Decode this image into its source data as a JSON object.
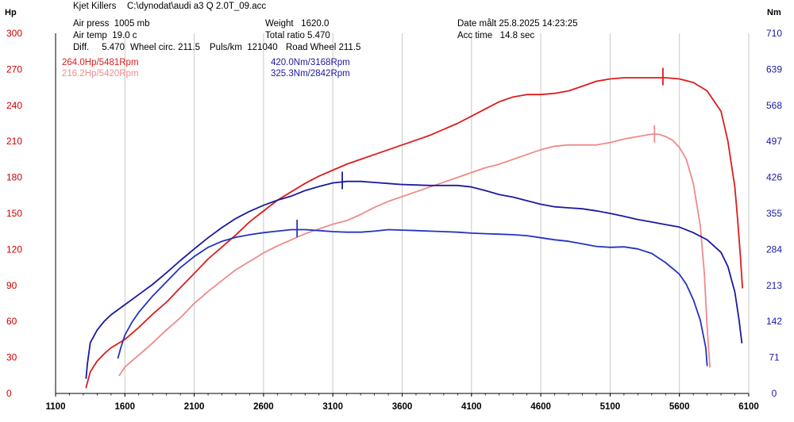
{
  "header": {
    "title": "Kjet Killers",
    "file": "C:\\dynodat\\audi a3 Q 2.0T_09.acc",
    "air_press": "Air press  1005 mb",
    "air_temp": "Air temp  19.0 c",
    "diff": "Diff.     5.470",
    "wheel_circ": "Wheel circ. 211.5",
    "puls_km": "Puls/km  121040",
    "road_wheel": "Road Wheel 211.5",
    "weight": "Weight   1620.0",
    "total_ratio": "Total ratio 5.470",
    "date": "Date målt 25.8.2025 14:23:25",
    "acc_time": "Acc time   14.8 sec"
  },
  "peaks": {
    "hp1": "264.0Hp/5481Rpm",
    "hp2": "216.2Hp/5420Rpm",
    "nm1": "420.0Nm/3168Rpm",
    "nm2": "325.3Nm/2842Rpm"
  },
  "colors": {
    "hp1": "#dd1c1c",
    "hp2": "#ef8a8a",
    "nm1": "#1a1aa0",
    "nm2": "#2433bf",
    "left_axis": "#cc0000",
    "right_axis": "#1a1aa0",
    "grid": "#c8c8c8"
  },
  "chart_data": {
    "type": "line",
    "xlabel": "",
    "ylabel_left": "Hp",
    "ylabel_right": "Nm",
    "xlim": [
      1100,
      6100
    ],
    "ylim_left": [
      0,
      300
    ],
    "ylim_right": [
      0,
      710
    ],
    "x_ticks": [
      1100,
      1600,
      2100,
      2600,
      3100,
      3600,
      4100,
      4600,
      5100,
      5600,
      6100
    ],
    "y_ticks_left": [
      0,
      30,
      60,
      90,
      120,
      150,
      180,
      210,
      240,
      270,
      300
    ],
    "y_ticks_right": [
      0,
      71,
      142,
      213,
      284,
      355,
      426,
      497,
      568,
      639,
      710
    ],
    "grid": "vertical",
    "series": [
      {
        "key": "hp1",
        "axis": "left",
        "color": "#dd1c1c",
        "peak_rpm": 5481,
        "peak_value": 264.0,
        "points": [
          [
            1320,
            5
          ],
          [
            1350,
            18
          ],
          [
            1400,
            27
          ],
          [
            1450,
            33
          ],
          [
            1500,
            38
          ],
          [
            1600,
            45
          ],
          [
            1700,
            55
          ],
          [
            1800,
            66
          ],
          [
            1900,
            76
          ],
          [
            2000,
            88
          ],
          [
            2100,
            100
          ],
          [
            2200,
            112
          ],
          [
            2300,
            122
          ],
          [
            2400,
            132
          ],
          [
            2500,
            143
          ],
          [
            2600,
            152
          ],
          [
            2700,
            161
          ],
          [
            2800,
            168
          ],
          [
            2900,
            175
          ],
          [
            3000,
            181
          ],
          [
            3100,
            186
          ],
          [
            3200,
            191
          ],
          [
            3300,
            195
          ],
          [
            3400,
            199
          ],
          [
            3500,
            203
          ],
          [
            3600,
            207
          ],
          [
            3700,
            211
          ],
          [
            3800,
            215
          ],
          [
            3900,
            220
          ],
          [
            4000,
            225
          ],
          [
            4100,
            231
          ],
          [
            4200,
            237
          ],
          [
            4300,
            243
          ],
          [
            4400,
            247
          ],
          [
            4500,
            249
          ],
          [
            4600,
            249
          ],
          [
            4700,
            250
          ],
          [
            4800,
            252
          ],
          [
            4900,
            256
          ],
          [
            5000,
            260
          ],
          [
            5100,
            262
          ],
          [
            5200,
            263
          ],
          [
            5300,
            263
          ],
          [
            5400,
            263
          ],
          [
            5500,
            263
          ],
          [
            5600,
            262
          ],
          [
            5700,
            259
          ],
          [
            5800,
            252
          ],
          [
            5900,
            235
          ],
          [
            5950,
            210
          ],
          [
            6000,
            172
          ],
          [
            6020,
            145
          ],
          [
            6040,
            114
          ],
          [
            6055,
            88
          ]
        ]
      },
      {
        "key": "hp2",
        "axis": "left",
        "color": "#ef8a8a",
        "peak_rpm": 5420,
        "peak_value": 216.2,
        "points": [
          [
            1560,
            15
          ],
          [
            1600,
            22
          ],
          [
            1700,
            32
          ],
          [
            1800,
            42
          ],
          [
            1900,
            53
          ],
          [
            2000,
            63
          ],
          [
            2100,
            75
          ],
          [
            2200,
            85
          ],
          [
            2300,
            94
          ],
          [
            2400,
            103
          ],
          [
            2500,
            110
          ],
          [
            2600,
            117
          ],
          [
            2700,
            123
          ],
          [
            2800,
            128
          ],
          [
            2900,
            133
          ],
          [
            3000,
            137
          ],
          [
            3100,
            141
          ],
          [
            3200,
            144
          ],
          [
            3300,
            149
          ],
          [
            3400,
            155
          ],
          [
            3500,
            160
          ],
          [
            3600,
            164
          ],
          [
            3700,
            168
          ],
          [
            3800,
            172
          ],
          [
            3900,
            176
          ],
          [
            4000,
            180
          ],
          [
            4100,
            184
          ],
          [
            4200,
            188
          ],
          [
            4300,
            191
          ],
          [
            4400,
            195
          ],
          [
            4500,
            199
          ],
          [
            4600,
            203
          ],
          [
            4700,
            206
          ],
          [
            4800,
            207
          ],
          [
            4900,
            207
          ],
          [
            5000,
            207
          ],
          [
            5100,
            209
          ],
          [
            5200,
            212
          ],
          [
            5300,
            214
          ],
          [
            5400,
            216
          ],
          [
            5450,
            216
          ],
          [
            5500,
            214
          ],
          [
            5550,
            211
          ],
          [
            5600,
            205
          ],
          [
            5650,
            195
          ],
          [
            5700,
            175
          ],
          [
            5750,
            140
          ],
          [
            5780,
            100
          ],
          [
            5800,
            55
          ],
          [
            5820,
            22
          ]
        ]
      },
      {
        "key": "nm1",
        "axis": "right",
        "color": "#1a1aa0",
        "peak_rpm": 3168,
        "peak_value": 420.0,
        "points": [
          [
            1320,
            30
          ],
          [
            1330,
            60
          ],
          [
            1350,
            100
          ],
          [
            1400,
            125
          ],
          [
            1450,
            142
          ],
          [
            1500,
            155
          ],
          [
            1600,
            175
          ],
          [
            1700,
            195
          ],
          [
            1800,
            215
          ],
          [
            1900,
            238
          ],
          [
            2000,
            262
          ],
          [
            2100,
            285
          ],
          [
            2200,
            307
          ],
          [
            2300,
            327
          ],
          [
            2400,
            345
          ],
          [
            2500,
            359
          ],
          [
            2600,
            371
          ],
          [
            2700,
            381
          ],
          [
            2800,
            389
          ],
          [
            2900,
            400
          ],
          [
            3000,
            408
          ],
          [
            3100,
            415
          ],
          [
            3200,
            418
          ],
          [
            3300,
            418
          ],
          [
            3400,
            416
          ],
          [
            3500,
            414
          ],
          [
            3600,
            412
          ],
          [
            3700,
            411
          ],
          [
            3800,
            410
          ],
          [
            3900,
            410
          ],
          [
            4000,
            410
          ],
          [
            4100,
            407
          ],
          [
            4200,
            400
          ],
          [
            4300,
            392
          ],
          [
            4400,
            387
          ],
          [
            4500,
            380
          ],
          [
            4600,
            373
          ],
          [
            4700,
            368
          ],
          [
            4800,
            366
          ],
          [
            4900,
            364
          ],
          [
            5000,
            360
          ],
          [
            5100,
            355
          ],
          [
            5200,
            349
          ],
          [
            5300,
            343
          ],
          [
            5400,
            338
          ],
          [
            5500,
            333
          ],
          [
            5600,
            328
          ],
          [
            5700,
            317
          ],
          [
            5800,
            303
          ],
          [
            5900,
            278
          ],
          [
            5950,
            250
          ],
          [
            6000,
            200
          ],
          [
            6030,
            145
          ],
          [
            6050,
            100
          ]
        ]
      },
      {
        "key": "nm2",
        "axis": "right",
        "color": "#2433bf",
        "peak_rpm": 2842,
        "peak_value": 325.3,
        "points": [
          [
            1550,
            70
          ],
          [
            1570,
            90
          ],
          [
            1600,
            115
          ],
          [
            1650,
            140
          ],
          [
            1700,
            160
          ],
          [
            1800,
            192
          ],
          [
            1900,
            220
          ],
          [
            2000,
            248
          ],
          [
            2100,
            270
          ],
          [
            2200,
            288
          ],
          [
            2300,
            300
          ],
          [
            2400,
            308
          ],
          [
            2500,
            313
          ],
          [
            2600,
            317
          ],
          [
            2700,
            320
          ],
          [
            2800,
            323
          ],
          [
            2900,
            323
          ],
          [
            3000,
            321
          ],
          [
            3100,
            319
          ],
          [
            3200,
            318
          ],
          [
            3300,
            318
          ],
          [
            3400,
            320
          ],
          [
            3500,
            323
          ],
          [
            3600,
            322
          ],
          [
            3700,
            321
          ],
          [
            3800,
            320
          ],
          [
            3900,
            319
          ],
          [
            4000,
            318
          ],
          [
            4100,
            316
          ],
          [
            4200,
            315
          ],
          [
            4300,
            314
          ],
          [
            4400,
            313
          ],
          [
            4500,
            311
          ],
          [
            4600,
            307
          ],
          [
            4700,
            303
          ],
          [
            4800,
            300
          ],
          [
            4900,
            295
          ],
          [
            5000,
            290
          ],
          [
            5100,
            288
          ],
          [
            5200,
            289
          ],
          [
            5300,
            285
          ],
          [
            5400,
            276
          ],
          [
            5500,
            258
          ],
          [
            5600,
            235
          ],
          [
            5650,
            215
          ],
          [
            5700,
            185
          ],
          [
            5750,
            145
          ],
          [
            5790,
            90
          ],
          [
            5800,
            55
          ]
        ]
      }
    ]
  }
}
